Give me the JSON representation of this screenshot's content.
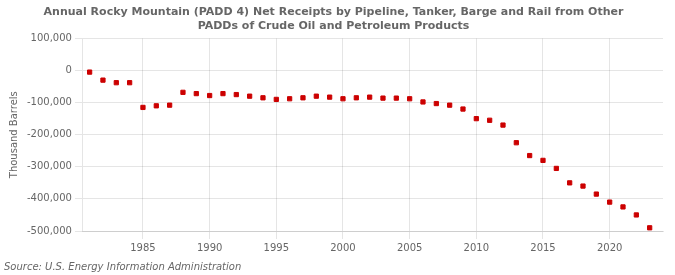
{
  "chart_data": {
    "type": "scatter",
    "title": "Annual Rocky Mountain (PADD 4) Net Receipts by Pipeline, Tanker, Barge and Rail from Other\nPADDs of Crude Oil and Petroleum Products",
    "ylabel": "Thousand Barrels",
    "source": "Source: U.S. Energy Information Administration",
    "x": [
      1981,
      1982,
      1983,
      1984,
      1985,
      1986,
      1987,
      1988,
      1989,
      1990,
      1991,
      1992,
      1993,
      1994,
      1995,
      1996,
      1997,
      1998,
      1999,
      2000,
      2001,
      2002,
      2003,
      2004,
      2005,
      2006,
      2007,
      2008,
      2009,
      2010,
      2011,
      2012,
      2013,
      2014,
      2015,
      2016,
      2017,
      2018,
      2019,
      2020,
      2021,
      2022,
      2023
    ],
    "values": [
      -5000,
      -30000,
      -38000,
      -38000,
      -115000,
      -110000,
      -108000,
      -68000,
      -72000,
      -78000,
      -72000,
      -75000,
      -80000,
      -85000,
      -90000,
      -88000,
      -85000,
      -80000,
      -83000,
      -88000,
      -85000,
      -83000,
      -86000,
      -86000,
      -88000,
      -98000,
      -103000,
      -108000,
      -120000,
      -150000,
      -155000,
      -170000,
      -225000,
      -265000,
      -280000,
      -305000,
      -350000,
      -360000,
      -385000,
      -410000,
      -425000,
      -450000,
      -490000
    ],
    "color": "#cc0000",
    "marker": "square",
    "xlim": [
      1980.5,
      2024
    ],
    "xticks": [
      1985,
      1990,
      1995,
      2000,
      2005,
      2010,
      2015,
      2020
    ],
    "ylim": [
      -500000,
      100000
    ],
    "yticks": [
      {
        "value": 100000,
        "label": "100,000"
      },
      0,
      {
        "value": -100000,
        "label": "-100,000"
      },
      {
        "value": -200000,
        "label": "-200,000"
      },
      {
        "value": -300000,
        "label": "-300,000"
      },
      {
        "value": -400000,
        "label": "-400,000"
      },
      {
        "value": -500000,
        "label": "-500,000"
      }
    ],
    "grid": true
  }
}
